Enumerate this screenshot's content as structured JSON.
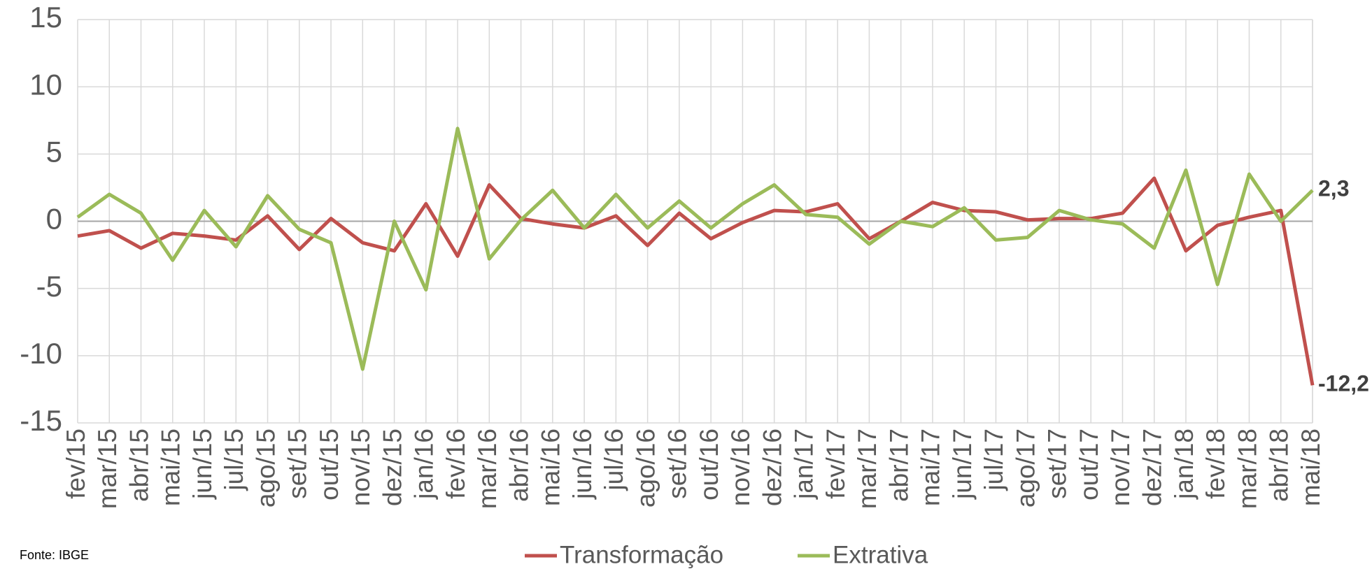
{
  "chart_data": {
    "type": "line",
    "categories": [
      "fev/15",
      "mar/15",
      "abr/15",
      "mai/15",
      "jun/15",
      "jul/15",
      "ago/15",
      "set/15",
      "out/15",
      "nov/15",
      "dez/15",
      "jan/16",
      "fev/16",
      "mar/16",
      "abr/16",
      "mai/16",
      "jun/16",
      "jul/16",
      "ago/16",
      "set/16",
      "out/16",
      "nov/16",
      "dez/16",
      "jan/17",
      "fev/17",
      "mar/17",
      "abr/17",
      "mai/17",
      "jun/17",
      "jul/17",
      "ago/17",
      "set/17",
      "out/17",
      "nov/17",
      "dez/17",
      "jan/18",
      "fev/18",
      "mar/18",
      "abr/18",
      "mai/18"
    ],
    "series": [
      {
        "name": "Transformação",
        "color": "#c0504d",
        "values": [
          -1.1,
          -0.7,
          -2.0,
          -0.9,
          -1.1,
          -1.4,
          0.4,
          -2.1,
          0.2,
          -1.6,
          -2.2,
          1.3,
          -2.6,
          2.7,
          0.2,
          -0.2,
          -0.5,
          0.4,
          -1.8,
          0.6,
          -1.3,
          -0.1,
          0.8,
          0.7,
          1.3,
          -1.3,
          0.0,
          1.4,
          0.8,
          0.7,
          0.1,
          0.2,
          0.2,
          0.6,
          3.2,
          -2.2,
          -0.3,
          0.3,
          0.8,
          -12.2
        ],
        "value_labels": [
          null,
          null,
          null,
          null,
          null,
          null,
          null,
          null,
          null,
          null,
          null,
          null,
          null,
          null,
          null,
          null,
          null,
          null,
          null,
          null,
          null,
          null,
          null,
          null,
          null,
          null,
          null,
          null,
          null,
          null,
          null,
          null,
          null,
          null,
          null,
          null,
          null,
          null,
          null,
          "-12,2"
        ]
      },
      {
        "name": "Extrativa",
        "color": "#9bbb59",
        "values": [
          0.3,
          2.0,
          0.6,
          -2.9,
          0.8,
          -1.9,
          1.9,
          -0.6,
          -1.6,
          -11.0,
          0.0,
          -5.1,
          6.9,
          -2.8,
          0.1,
          2.3,
          -0.5,
          2.0,
          -0.5,
          1.5,
          -0.5,
          1.3,
          2.7,
          0.5,
          0.3,
          -1.7,
          0.0,
          -0.4,
          1.0,
          -1.4,
          -1.2,
          0.8,
          0.1,
          -0.2,
          -2.0,
          3.8,
          -4.7,
          3.5,
          0.0,
          2.3
        ],
        "value_labels": [
          null,
          null,
          null,
          null,
          null,
          null,
          null,
          null,
          null,
          null,
          null,
          null,
          null,
          null,
          null,
          null,
          null,
          null,
          null,
          null,
          null,
          null,
          null,
          null,
          null,
          null,
          null,
          null,
          null,
          null,
          null,
          null,
          null,
          null,
          null,
          null,
          null,
          null,
          null,
          "2,3"
        ]
      }
    ],
    "ylim": [
      -15,
      15
    ],
    "yticks": [
      -15,
      -10,
      -5,
      0,
      5,
      10,
      15
    ],
    "grid": true,
    "source": "Fonte: IBGE",
    "legend": "bottom"
  }
}
